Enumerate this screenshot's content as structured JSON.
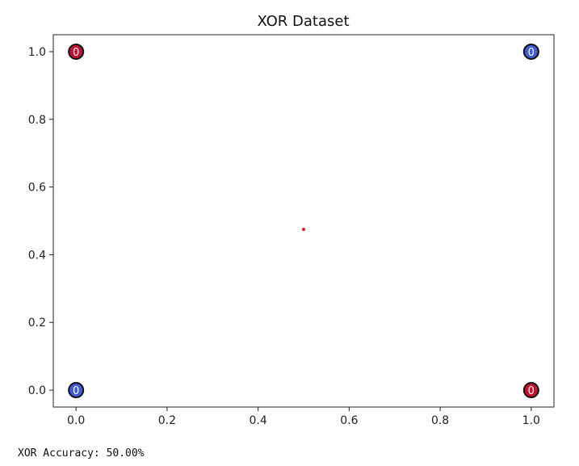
{
  "chart_data": {
    "type": "scatter",
    "title": "XOR Dataset",
    "xlabel": "",
    "ylabel": "",
    "xlim": [
      -0.05,
      1.05
    ],
    "ylim": [
      -0.05,
      1.05
    ],
    "grid": false,
    "x_ticks": [
      "0.0",
      "0.2",
      "0.4",
      "0.6",
      "0.8",
      "1.0"
    ],
    "y_ticks": [
      "0.0",
      "0.2",
      "0.4",
      "0.6",
      "0.8",
      "1.0"
    ],
    "points": [
      {
        "x": 0,
        "y": 0,
        "label": "0",
        "color": "#3f5bd6",
        "edgecolor": "#111111"
      },
      {
        "x": 0,
        "y": 1,
        "label": "0",
        "color": "#c5102f",
        "edgecolor": "#111111"
      },
      {
        "x": 1,
        "y": 0,
        "label": "0",
        "color": "#c5102f",
        "edgecolor": "#111111"
      },
      {
        "x": 1,
        "y": 1,
        "label": "0",
        "color": "#3f5bd6",
        "edgecolor": "#111111"
      }
    ],
    "marker": {
      "x": 0.5,
      "y": 0.475,
      "color": "#e11d1d"
    }
  },
  "output": {
    "accuracy_text": "XOR Accuracy: 50.00%"
  }
}
